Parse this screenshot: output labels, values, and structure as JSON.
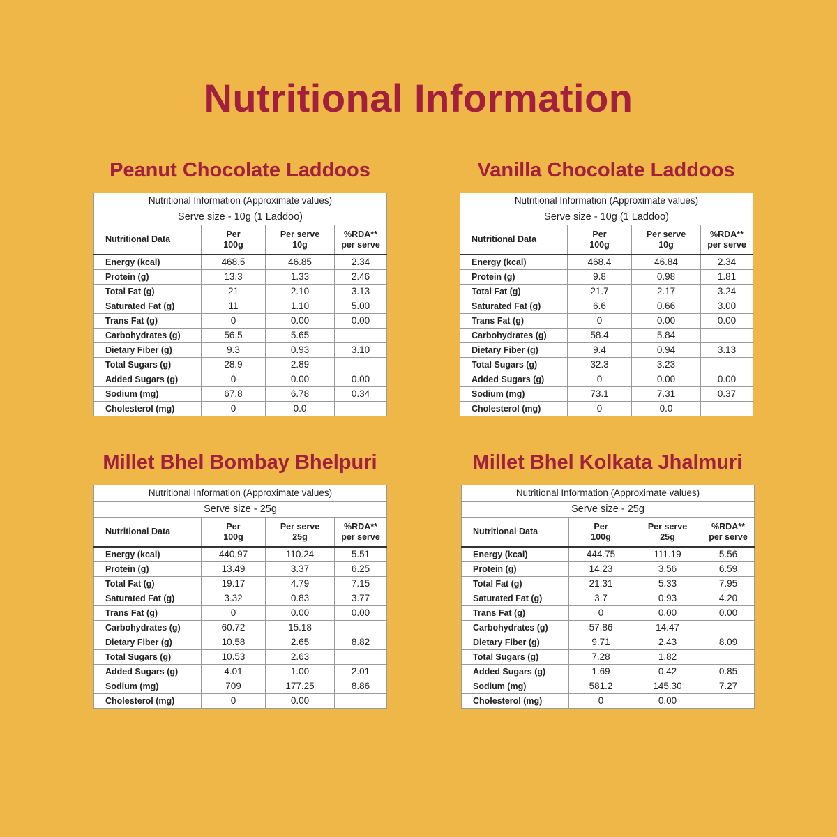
{
  "title": "Nutritional Information",
  "products": [
    {
      "name": "Peanut Chocolate Laddoos",
      "caption": "Nutritional Information (Approximate values)",
      "serve": "Serve size - 10g (1 Laddoo)",
      "headers": [
        [
          "Nutritional Data"
        ],
        [
          "Per",
          "100g"
        ],
        [
          "Per serve",
          "10g"
        ],
        [
          "%RDA**",
          "per serve"
        ]
      ],
      "rows": [
        [
          "Energy (kcal)",
          "468.5",
          "46.85",
          "2.34"
        ],
        [
          "Protein (g)",
          "13.3",
          "1.33",
          "2.46"
        ],
        [
          "Total Fat (g)",
          "21",
          "2.10",
          "3.13"
        ],
        [
          "Saturated Fat (g)",
          "11",
          "1.10",
          "5.00"
        ],
        [
          "Trans Fat (g)",
          "0",
          "0.00",
          "0.00"
        ],
        [
          "Carbohydrates (g)",
          "56.5",
          "5.65",
          null
        ],
        [
          "Dietary Fiber (g)",
          "9.3",
          "0.93",
          "3.10"
        ],
        [
          "Total Sugars (g)",
          "28.9",
          "2.89",
          null
        ],
        [
          "Added Sugars (g)",
          "0",
          "0.00",
          "0.00"
        ],
        [
          "Sodium (mg)",
          "67.8",
          "6.78",
          "0.34"
        ],
        [
          "Cholesterol (mg)",
          "0",
          "0.0",
          null
        ]
      ]
    },
    {
      "name": "Vanilla Chocolate Laddoos",
      "caption": "Nutritional Information (Approximate values)",
      "serve": "Serve size - 10g (1 Laddoo)",
      "headers": [
        [
          "Nutritional Data"
        ],
        [
          "Per",
          "100g"
        ],
        [
          "Per serve",
          "10g"
        ],
        [
          "%RDA**",
          "per serve"
        ]
      ],
      "rows": [
        [
          "Energy (kcal)",
          "468.4",
          "46.84",
          "2.34"
        ],
        [
          "Protein (g)",
          "9.8",
          "0.98",
          "1.81"
        ],
        [
          "Total Fat (g)",
          "21.7",
          "2.17",
          "3.24"
        ],
        [
          "Saturated Fat (g)",
          "6.6",
          "0.66",
          "3.00"
        ],
        [
          "Trans Fat (g)",
          "0",
          "0.00",
          "0.00"
        ],
        [
          "Carbohydrates (g)",
          "58.4",
          "5.84",
          null
        ],
        [
          "Dietary Fiber (g)",
          "9.4",
          "0.94",
          "3.13"
        ],
        [
          "Total Sugars (g)",
          "32.3",
          "3.23",
          null
        ],
        [
          "Added Sugars (g)",
          "0",
          "0.00",
          "0.00"
        ],
        [
          "Sodium (mg)",
          "73.1",
          "7.31",
          "0.37"
        ],
        [
          "Cholesterol (mg)",
          "0",
          "0.0",
          null
        ]
      ]
    },
    {
      "name": "Millet Bhel Bombay Bhelpuri",
      "caption": "Nutritional Information (Approximate values)",
      "serve": "Serve size - 25g",
      "headers": [
        [
          "Nutritional Data"
        ],
        [
          "Per",
          "100g"
        ],
        [
          "Per serve",
          "25g"
        ],
        [
          "%RDA**",
          "per serve"
        ]
      ],
      "rows": [
        [
          "Energy (kcal)",
          "440.97",
          "110.24",
          "5.51"
        ],
        [
          "Protein (g)",
          "13.49",
          "3.37",
          "6.25"
        ],
        [
          "Total Fat (g)",
          "19.17",
          "4.79",
          "7.15"
        ],
        [
          "Saturated Fat (g)",
          "3.32",
          "0.83",
          "3.77"
        ],
        [
          "Trans Fat (g)",
          "0",
          "0.00",
          "0.00"
        ],
        [
          "Carbohydrates (g)",
          "60.72",
          "15.18",
          null
        ],
        [
          "Dietary Fiber (g)",
          "10.58",
          "2.65",
          "8.82"
        ],
        [
          "Total Sugars (g)",
          "10.53",
          "2.63",
          null
        ],
        [
          "Added Sugars (g)",
          "4.01",
          "1.00",
          "2.01"
        ],
        [
          "Sodium (mg)",
          "709",
          "177.25",
          "8.86"
        ],
        [
          "Cholesterol (mg)",
          "0",
          "0.00",
          null
        ]
      ]
    },
    {
      "name": "Millet Bhel Kolkata Jhalmuri",
      "caption": "Nutritional Information (Approximate values)",
      "serve": "Serve size - 25g",
      "headers": [
        [
          "Nutritional Data"
        ],
        [
          "Per",
          "100g"
        ],
        [
          "Per serve",
          "25g"
        ],
        [
          "%RDA**",
          "per serve"
        ]
      ],
      "rows": [
        [
          "Energy (kcal)",
          "444.75",
          "111.19",
          "5.56"
        ],
        [
          "Protein (g)",
          "14.23",
          "3.56",
          "6.59"
        ],
        [
          "Total Fat (g)",
          "21.31",
          "5.33",
          "7.95"
        ],
        [
          "Saturated Fat (g)",
          "3.7",
          "0.93",
          "4.20"
        ],
        [
          "Trans Fat (g)",
          "0",
          "0.00",
          "0.00"
        ],
        [
          "Carbohydrates (g)",
          "57.86",
          "14.47",
          null
        ],
        [
          "Dietary Fiber (g)",
          "9.71",
          "2.43",
          "8.09"
        ],
        [
          "Total Sugars (g)",
          "7.28",
          "1.82",
          null
        ],
        [
          "Added Sugars (g)",
          "1.69",
          "0.42",
          "0.85"
        ],
        [
          "Sodium (mg)",
          "581.2",
          "145.30",
          "7.27"
        ],
        [
          "Cholesterol (mg)",
          "0",
          "0.00",
          null
        ]
      ]
    }
  ]
}
